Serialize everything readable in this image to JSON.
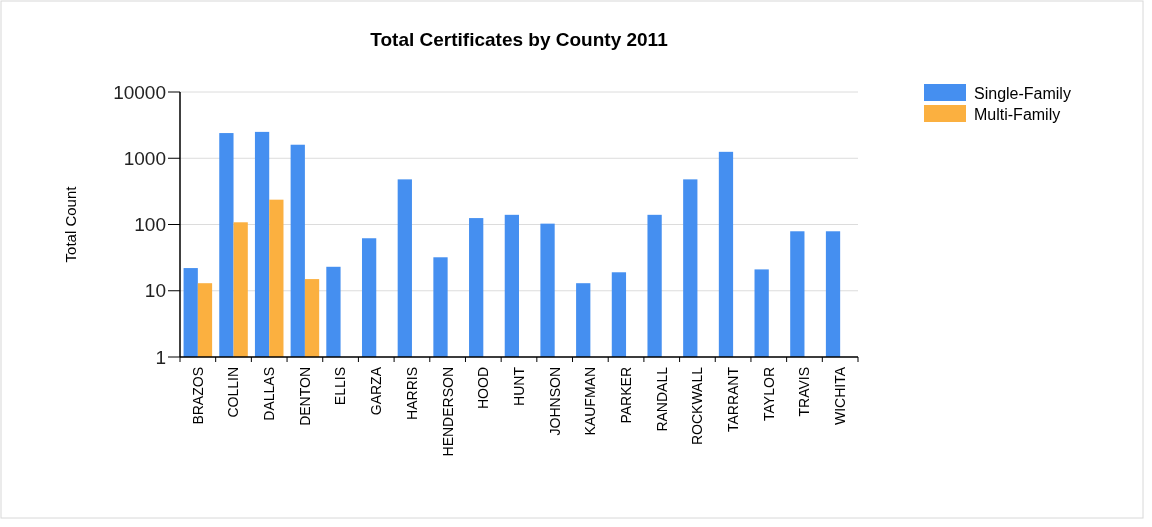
{
  "chart_data": {
    "type": "bar",
    "title": "Total Certificates by County 2011",
    "ylabel": "Total Count",
    "categories": [
      "BRAZOS",
      "COLLIN",
      "DALLAS",
      "DENTON",
      "ELLIS",
      "GARZA",
      "HARRIS",
      "HENDERSON",
      "HOOD",
      "HUNT",
      "JOHNSON",
      "KAUFMAN",
      "PARKER",
      "RANDALL",
      "ROCKWALL",
      "TARRANT",
      "TAYLOR",
      "TRAVIS",
      "WICHITA"
    ],
    "series": [
      {
        "name": "Single-Family",
        "color": "#458ff0",
        "values": [
          22,
          2400,
          2500,
          1600,
          23,
          62,
          480,
          32,
          125,
          140,
          103,
          13,
          19,
          140,
          480,
          1250,
          21,
          79,
          79
        ]
      },
      {
        "name": "Multi-Family",
        "color": "#fbb040",
        "values": [
          13,
          108,
          237,
          15,
          null,
          null,
          null,
          null,
          null,
          null,
          null,
          null,
          null,
          null,
          null,
          null,
          null,
          null,
          null
        ]
      }
    ],
    "log": true,
    "ylim": [
      1,
      10000
    ],
    "yticks": [
      1,
      10,
      100,
      1000,
      10000
    ],
    "grid": "y",
    "legend": "top right"
  }
}
